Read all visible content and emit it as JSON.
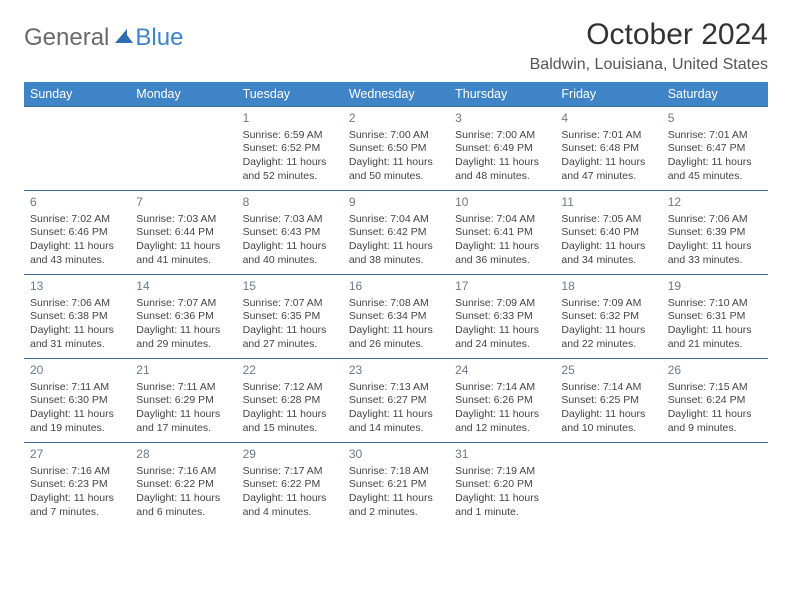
{
  "logo": {
    "word1": "General",
    "word2": "Blue"
  },
  "title": {
    "month": "October 2024",
    "location": "Baldwin, Louisiana, United States"
  },
  "colors": {
    "header_bg": "#3e84c6",
    "header_text": "#ffffff",
    "border": "#3e6a9a",
    "text": "#444444",
    "daynum": "#6a7a8a",
    "logo_gray": "#6a6a6a",
    "logo_blue": "#3e84c6",
    "background": "#ffffff"
  },
  "day_headers": [
    "Sunday",
    "Monday",
    "Tuesday",
    "Wednesday",
    "Thursday",
    "Friday",
    "Saturday"
  ],
  "weeks": [
    [
      null,
      null,
      {
        "n": "1",
        "sr": "6:59 AM",
        "ss": "6:52 PM",
        "dl": "11 hours and 52 minutes."
      },
      {
        "n": "2",
        "sr": "7:00 AM",
        "ss": "6:50 PM",
        "dl": "11 hours and 50 minutes."
      },
      {
        "n": "3",
        "sr": "7:00 AM",
        "ss": "6:49 PM",
        "dl": "11 hours and 48 minutes."
      },
      {
        "n": "4",
        "sr": "7:01 AM",
        "ss": "6:48 PM",
        "dl": "11 hours and 47 minutes."
      },
      {
        "n": "5",
        "sr": "7:01 AM",
        "ss": "6:47 PM",
        "dl": "11 hours and 45 minutes."
      }
    ],
    [
      {
        "n": "6",
        "sr": "7:02 AM",
        "ss": "6:46 PM",
        "dl": "11 hours and 43 minutes."
      },
      {
        "n": "7",
        "sr": "7:03 AM",
        "ss": "6:44 PM",
        "dl": "11 hours and 41 minutes."
      },
      {
        "n": "8",
        "sr": "7:03 AM",
        "ss": "6:43 PM",
        "dl": "11 hours and 40 minutes."
      },
      {
        "n": "9",
        "sr": "7:04 AM",
        "ss": "6:42 PM",
        "dl": "11 hours and 38 minutes."
      },
      {
        "n": "10",
        "sr": "7:04 AM",
        "ss": "6:41 PM",
        "dl": "11 hours and 36 minutes."
      },
      {
        "n": "11",
        "sr": "7:05 AM",
        "ss": "6:40 PM",
        "dl": "11 hours and 34 minutes."
      },
      {
        "n": "12",
        "sr": "7:06 AM",
        "ss": "6:39 PM",
        "dl": "11 hours and 33 minutes."
      }
    ],
    [
      {
        "n": "13",
        "sr": "7:06 AM",
        "ss": "6:38 PM",
        "dl": "11 hours and 31 minutes."
      },
      {
        "n": "14",
        "sr": "7:07 AM",
        "ss": "6:36 PM",
        "dl": "11 hours and 29 minutes."
      },
      {
        "n": "15",
        "sr": "7:07 AM",
        "ss": "6:35 PM",
        "dl": "11 hours and 27 minutes."
      },
      {
        "n": "16",
        "sr": "7:08 AM",
        "ss": "6:34 PM",
        "dl": "11 hours and 26 minutes."
      },
      {
        "n": "17",
        "sr": "7:09 AM",
        "ss": "6:33 PM",
        "dl": "11 hours and 24 minutes."
      },
      {
        "n": "18",
        "sr": "7:09 AM",
        "ss": "6:32 PM",
        "dl": "11 hours and 22 minutes."
      },
      {
        "n": "19",
        "sr": "7:10 AM",
        "ss": "6:31 PM",
        "dl": "11 hours and 21 minutes."
      }
    ],
    [
      {
        "n": "20",
        "sr": "7:11 AM",
        "ss": "6:30 PM",
        "dl": "11 hours and 19 minutes."
      },
      {
        "n": "21",
        "sr": "7:11 AM",
        "ss": "6:29 PM",
        "dl": "11 hours and 17 minutes."
      },
      {
        "n": "22",
        "sr": "7:12 AM",
        "ss": "6:28 PM",
        "dl": "11 hours and 15 minutes."
      },
      {
        "n": "23",
        "sr": "7:13 AM",
        "ss": "6:27 PM",
        "dl": "11 hours and 14 minutes."
      },
      {
        "n": "24",
        "sr": "7:14 AM",
        "ss": "6:26 PM",
        "dl": "11 hours and 12 minutes."
      },
      {
        "n": "25",
        "sr": "7:14 AM",
        "ss": "6:25 PM",
        "dl": "11 hours and 10 minutes."
      },
      {
        "n": "26",
        "sr": "7:15 AM",
        "ss": "6:24 PM",
        "dl": "11 hours and 9 minutes."
      }
    ],
    [
      {
        "n": "27",
        "sr": "7:16 AM",
        "ss": "6:23 PM",
        "dl": "11 hours and 7 minutes."
      },
      {
        "n": "28",
        "sr": "7:16 AM",
        "ss": "6:22 PM",
        "dl": "11 hours and 6 minutes."
      },
      {
        "n": "29",
        "sr": "7:17 AM",
        "ss": "6:22 PM",
        "dl": "11 hours and 4 minutes."
      },
      {
        "n": "30",
        "sr": "7:18 AM",
        "ss": "6:21 PM",
        "dl": "11 hours and 2 minutes."
      },
      {
        "n": "31",
        "sr": "7:19 AM",
        "ss": "6:20 PM",
        "dl": "11 hours and 1 minute."
      },
      null,
      null
    ]
  ],
  "labels": {
    "sunrise": "Sunrise:",
    "sunset": "Sunset:",
    "daylight": "Daylight:"
  }
}
